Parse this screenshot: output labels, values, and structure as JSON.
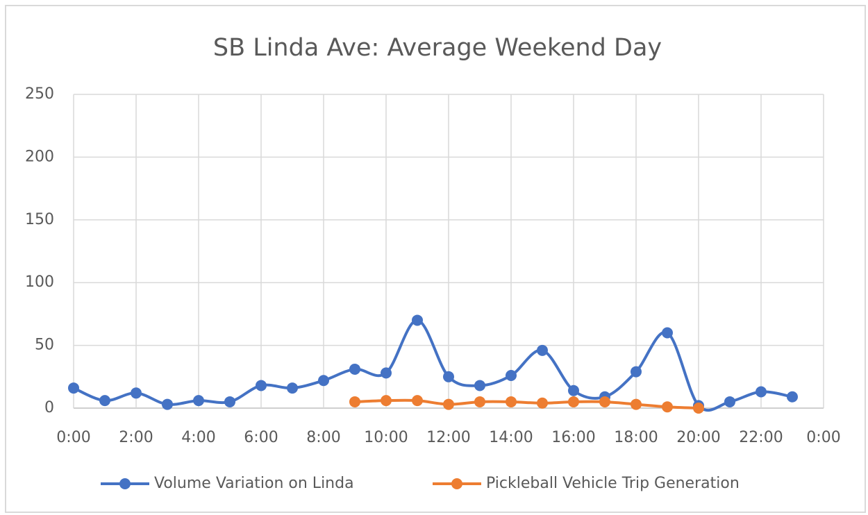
{
  "chart_data": {
    "type": "line",
    "title": "SB Linda Ave: Average Weekend Day",
    "x": [
      0,
      1,
      2,
      3,
      4,
      5,
      6,
      7,
      8,
      9,
      10,
      11,
      12,
      13,
      14,
      15,
      16,
      17,
      18,
      19,
      20,
      21,
      22,
      23
    ],
    "series": [
      {
        "name": "Volume Variation on Linda",
        "color": "#4472c4",
        "values": [
          16,
          6,
          12,
          3,
          6,
          5,
          18,
          16,
          22,
          31,
          28,
          70,
          25,
          18,
          26,
          46,
          14,
          9,
          29,
          60,
          2,
          5,
          13,
          9
        ]
      },
      {
        "name": "Pickleball Vehicle Trip Generation",
        "color": "#ed7d31",
        "values": [
          null,
          null,
          null,
          null,
          null,
          null,
          null,
          null,
          null,
          5,
          6,
          6,
          3,
          5,
          5,
          4,
          5,
          5,
          3,
          1,
          0,
          null,
          null,
          null
        ]
      }
    ],
    "xlim": [
      0,
      24
    ],
    "xticks": [
      {
        "value": 0,
        "label": "0:00"
      },
      {
        "value": 2,
        "label": "2:00"
      },
      {
        "value": 4,
        "label": "4:00"
      },
      {
        "value": 6,
        "label": "6:00"
      },
      {
        "value": 8,
        "label": "8:00"
      },
      {
        "value": 10,
        "label": "10:00"
      },
      {
        "value": 12,
        "label": "12:00"
      },
      {
        "value": 14,
        "label": "14:00"
      },
      {
        "value": 16,
        "label": "16:00"
      },
      {
        "value": 18,
        "label": "18:00"
      },
      {
        "value": 20,
        "label": "20:00"
      },
      {
        "value": 22,
        "label": "22:00"
      },
      {
        "value": 24,
        "label": "0:00"
      }
    ],
    "ylim": [
      0,
      250
    ],
    "yticks": [
      0,
      50,
      100,
      150,
      200,
      250
    ],
    "grid": true,
    "smooth": true,
    "legend": "bottom"
  }
}
